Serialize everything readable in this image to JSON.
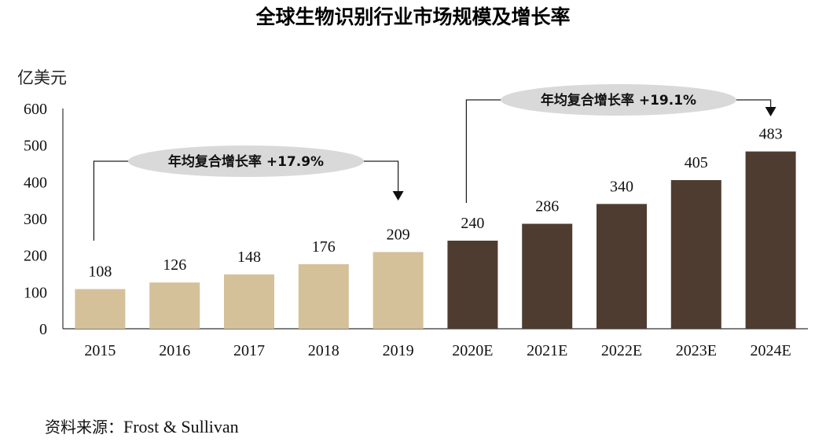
{
  "header": {
    "title": "全球生物识别行业市场规模及增长率"
  },
  "unit_label": "亿美元",
  "source": {
    "prefix": "资料来源：",
    "text": "Frost & Sullivan"
  },
  "colors": {
    "historical": "#d4c19a",
    "forecast": "#4f3c30",
    "axis": "#333333",
    "ellipse": "#d9d9d9"
  },
  "annotations": [
    {
      "label": "年均复合增长率 +17.9%",
      "from": "2015",
      "to": "2019"
    },
    {
      "label": "年均复合增长率 +19.1%",
      "from": "2020E",
      "to": "2024E"
    }
  ],
  "chart_data": {
    "type": "bar",
    "title": "全球生物识别行业市场规模及增长率",
    "ylabel": "亿美元",
    "xlabel": "",
    "ylim": [
      0,
      600
    ],
    "yticks": [
      0,
      100,
      200,
      300,
      400,
      500,
      600
    ],
    "grid": false,
    "categories": [
      "2015",
      "2016",
      "2017",
      "2018",
      "2019",
      "2020E",
      "2021E",
      "2022E",
      "2023E",
      "2024E"
    ],
    "values": [
      108,
      126,
      148,
      176,
      209,
      240,
      286,
      340,
      405,
      483
    ],
    "forecast": [
      false,
      false,
      false,
      false,
      false,
      true,
      true,
      true,
      true,
      true
    ]
  }
}
